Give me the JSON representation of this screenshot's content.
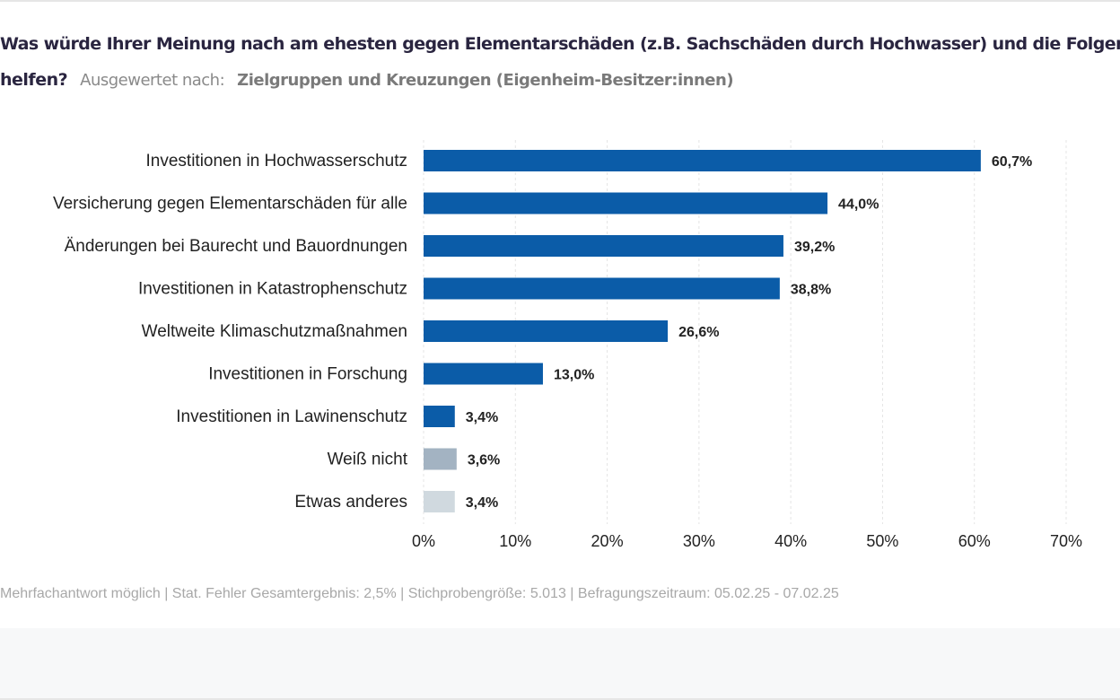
{
  "header": {
    "title_line1": "Was würde Ihrer Meinung nach am ehesten gegen Elementarschäden (z.B. Sachschäden durch Hochwasser) und die Folgen",
    "title_line2": "helfen?",
    "evaluated_label": "Ausgewertet nach:",
    "evaluated_value": "Zielgruppen und Kreuzungen (Eigenheim-Besitzer:innen)"
  },
  "chart_data": {
    "type": "bar",
    "orientation": "horizontal",
    "categories": [
      "Investitionen in Hochwasserschutz",
      "Versicherung gegen Elementarschäden für alle",
      "Änderungen bei Baurecht und Bauordnungen",
      "Investitionen in Katastrophenschutz",
      "Weltweite Klimaschutzmaßnahmen",
      "Investitionen in Forschung",
      "Investitionen in Lawinenschutz",
      "Weiß nicht",
      "Etwas anderes"
    ],
    "values": [
      60.7,
      44.0,
      39.2,
      38.8,
      26.6,
      13.0,
      3.4,
      3.6,
      3.4
    ],
    "data_labels": [
      "60,7%",
      "44,0%",
      "39,2%",
      "38,8%",
      "26,6%",
      "13,0%",
      "3,4%",
      "3,6%",
      "3,4%"
    ],
    "colors": [
      "#0b5ca8",
      "#0b5ca8",
      "#0b5ca8",
      "#0b5ca8",
      "#0b5ca8",
      "#0b5ca8",
      "#0b5ca8",
      "#a3b3c2",
      "#d0d9df"
    ],
    "xlim": [
      0,
      70
    ],
    "xticks": [
      "0%",
      "10%",
      "20%",
      "30%",
      "40%",
      "50%",
      "60%",
      "70%"
    ],
    "grid": true
  },
  "footer": {
    "note": "Mehrfachantwort möglich | Stat. Fehler Gesamtergebnis: 2,5% | Stichprobengröße: 5.013 | Befragungszeitraum: 05.02.25 - 07.02.25"
  }
}
